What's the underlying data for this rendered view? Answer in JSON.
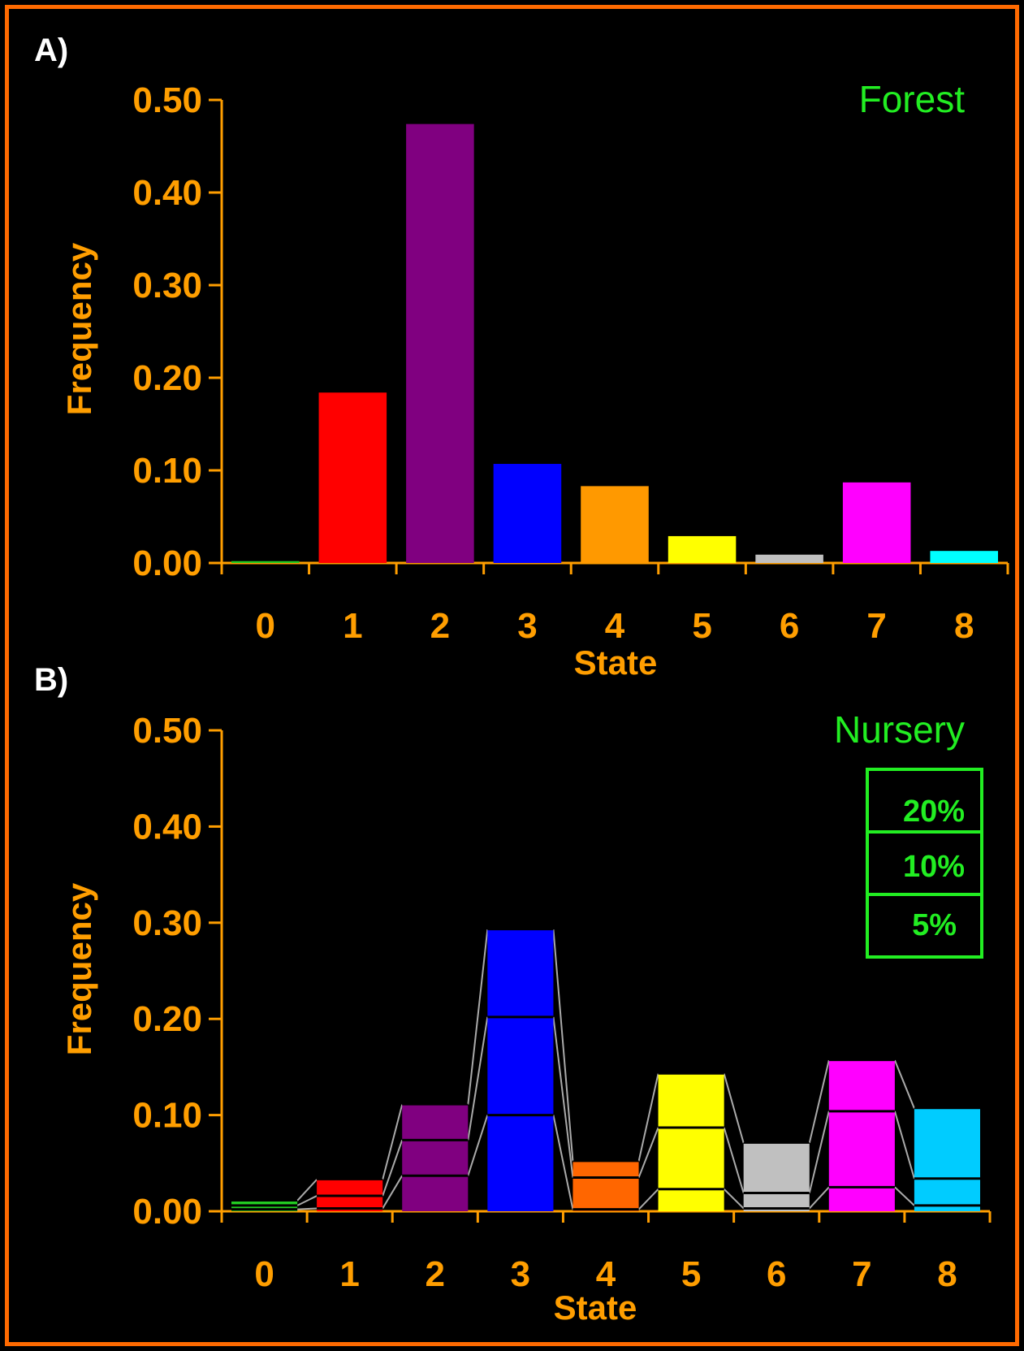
{
  "chart_data": [
    {
      "type": "bar",
      "panel_label": "A)",
      "title": "Forest",
      "xlabel": "State",
      "ylabel": "Frequency",
      "ylim": [
        0,
        0.5
      ],
      "yticks": [
        "0.00",
        "0.10",
        "0.20",
        "0.30",
        "0.40",
        "0.50"
      ],
      "categories": [
        "0",
        "1",
        "2",
        "3",
        "4",
        "5",
        "6",
        "7",
        "8"
      ],
      "values": [
        0.002,
        0.184,
        0.474,
        0.107,
        0.083,
        0.029,
        0.009,
        0.087,
        0.013
      ],
      "colors": [
        "#22cc22",
        "#ff0000",
        "#800080",
        "#0000ff",
        "#ff9900",
        "#ffff00",
        "#c0c0c0",
        "#ff00ff",
        "#00ffff"
      ]
    },
    {
      "type": "bar",
      "panel_label": "B)",
      "title": "Nursery",
      "xlabel": "State",
      "ylabel": "Frequency",
      "ylim": [
        0,
        0.5
      ],
      "yticks": [
        "0.00",
        "0.10",
        "0.20",
        "0.30",
        "0.40",
        "0.50"
      ],
      "categories": [
        "0",
        "1",
        "2",
        "3",
        "4",
        "5",
        "6",
        "7",
        "8"
      ],
      "series": [
        {
          "name": "20%",
          "values": [
            0.011,
            0.033,
            0.111,
            0.293,
            0.052,
            0.143,
            0.071,
            0.157,
            0.107
          ]
        },
        {
          "name": "10%",
          "values": [
            0.006,
            0.016,
            0.074,
            0.202,
            0.035,
            0.087,
            0.019,
            0.104,
            0.034
          ]
        },
        {
          "name": "5%",
          "values": [
            0.002,
            0.003,
            0.037,
            0.1,
            0.002,
            0.023,
            0.003,
            0.025,
            0.006
          ]
        }
      ],
      "colors": [
        "#22cc22",
        "#ff0000",
        "#800080",
        "#0000ff",
        "#ff6600",
        "#ffff00",
        "#c0c0c0",
        "#ff00ff",
        "#00ccff"
      ],
      "legend": {
        "position": "top-right",
        "entries": [
          "20%",
          "10%",
          "5%"
        ]
      }
    }
  ]
}
